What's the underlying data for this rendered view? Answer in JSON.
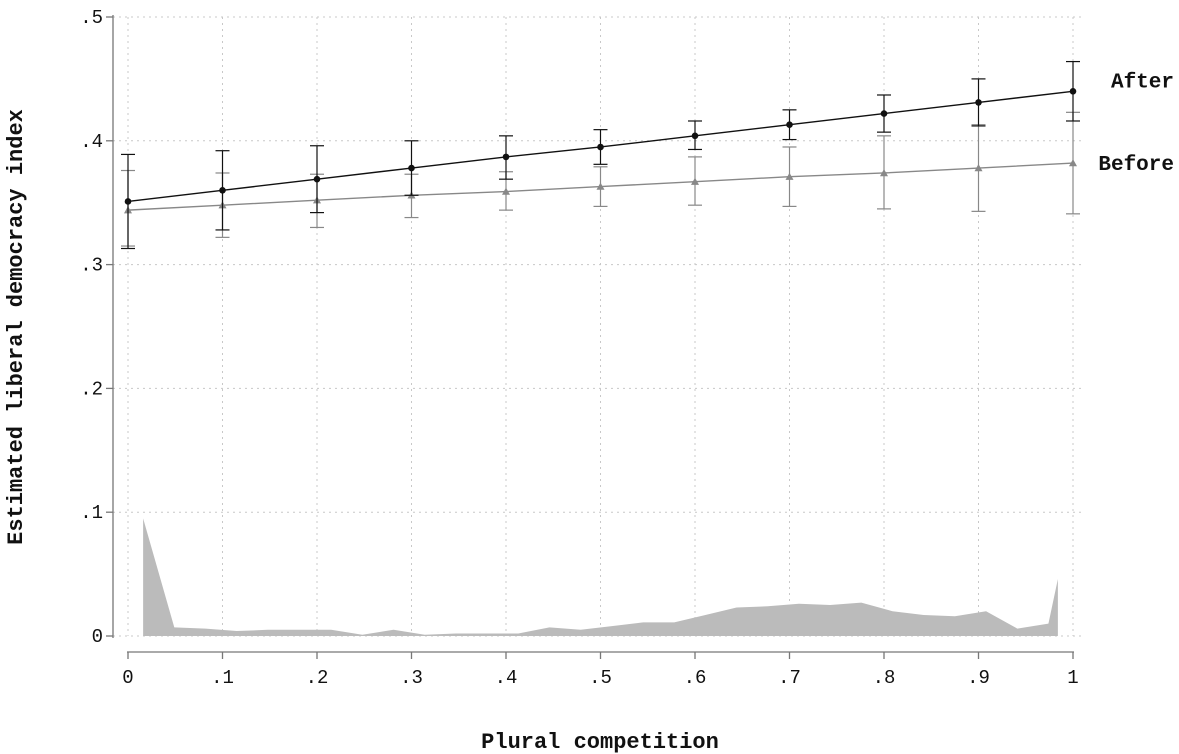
{
  "chart_data": {
    "type": "line",
    "xlabel": "Plural competition",
    "ylabel": "Estimated liberal democracy index",
    "xlim": [
      0,
      1
    ],
    "ylim": [
      0,
      0.5
    ],
    "xticks": [
      0,
      0.1,
      0.2,
      0.3,
      0.4,
      0.5,
      0.6,
      0.7,
      0.8,
      0.9,
      1
    ],
    "xtick_labels": [
      "0",
      ".1",
      ".2",
      ".3",
      ".4",
      ".5",
      ".6",
      ".7",
      ".8",
      ".9",
      "1"
    ],
    "yticks": [
      0,
      0.1,
      0.2,
      0.3,
      0.4,
      0.5
    ],
    "ytick_labels": [
      "0",
      ".1",
      ".2",
      ".3",
      ".4",
      ".5"
    ],
    "grid": true,
    "x": [
      0,
      0.1,
      0.2,
      0.3,
      0.4,
      0.5,
      0.6,
      0.7,
      0.8,
      0.9,
      1
    ],
    "series": [
      {
        "name": "After",
        "color": "#111111",
        "marker": "circle",
        "values": [
          0.351,
          0.36,
          0.369,
          0.378,
          0.387,
          0.395,
          0.404,
          0.413,
          0.422,
          0.431,
          0.44
        ],
        "ci_low": [
          0.313,
          0.328,
          0.342,
          0.356,
          0.369,
          0.381,
          0.393,
          0.401,
          0.407,
          0.412,
          0.416
        ],
        "ci_high": [
          0.389,
          0.392,
          0.396,
          0.4,
          0.404,
          0.409,
          0.416,
          0.425,
          0.437,
          0.45,
          0.464
        ]
      },
      {
        "name": "Before",
        "color": "#888888",
        "marker": "triangle",
        "values": [
          0.344,
          0.348,
          0.352,
          0.356,
          0.359,
          0.363,
          0.367,
          0.371,
          0.374,
          0.378,
          0.382
        ],
        "ci_low": [
          0.315,
          0.322,
          0.33,
          0.338,
          0.344,
          0.347,
          0.348,
          0.347,
          0.345,
          0.343,
          0.341
        ],
        "ci_high": [
          0.376,
          0.374,
          0.373,
          0.373,
          0.375,
          0.379,
          0.387,
          0.395,
          0.404,
          0.413,
          0.423
        ]
      }
    ],
    "histogram": {
      "color": "#bbbbbb",
      "x": [
        0.016,
        0.049,
        0.082,
        0.115,
        0.148,
        0.182,
        0.215,
        0.248,
        0.281,
        0.314,
        0.347,
        0.38,
        0.413,
        0.446,
        0.479,
        0.512,
        0.545,
        0.578,
        0.611,
        0.644,
        0.677,
        0.71,
        0.743,
        0.776,
        0.809,
        0.842,
        0.875,
        0.908,
        0.941,
        0.974,
        0.984
      ],
      "values": [
        0.095,
        0.007,
        0.006,
        0.004,
        0.005,
        0.005,
        0.005,
        0.001,
        0.005,
        0.001,
        0.002,
        0.002,
        0.002,
        0.007,
        0.005,
        0.008,
        0.011,
        0.011,
        0.017,
        0.023,
        0.024,
        0.026,
        0.025,
        0.027,
        0.02,
        0.017,
        0.016,
        0.02,
        0.006,
        0.01,
        0.046
      ]
    }
  }
}
